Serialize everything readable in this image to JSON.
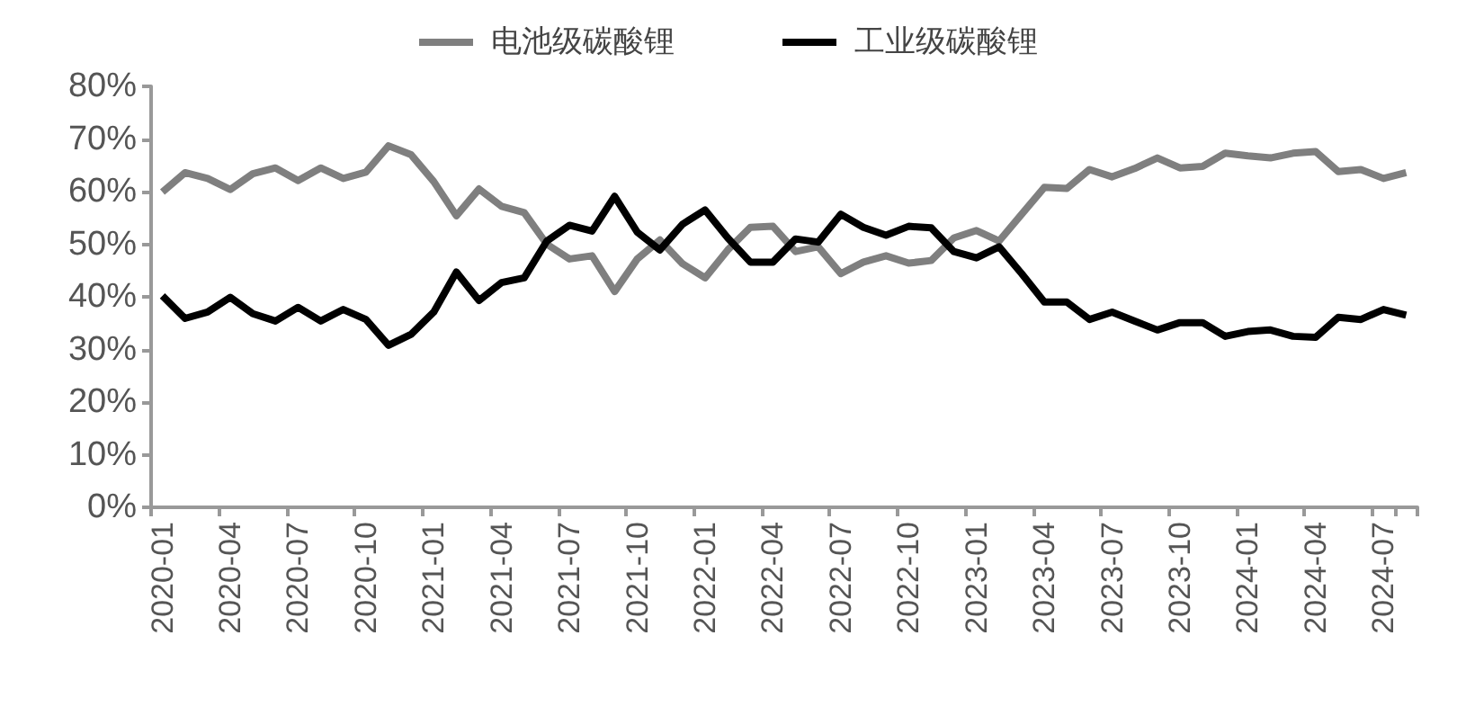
{
  "chart_data": {
    "type": "line",
    "categories": [
      "2020-01",
      null,
      null,
      "2020-04",
      null,
      null,
      "2020-07",
      null,
      null,
      "2020-10",
      null,
      null,
      "2021-01",
      null,
      null,
      "2021-04",
      null,
      null,
      "2021-07",
      null,
      null,
      "2021-10",
      null,
      null,
      "2022-01",
      null,
      null,
      "2022-04",
      null,
      null,
      "2022-07",
      null,
      null,
      "2022-10",
      null,
      null,
      "2023-01",
      null,
      null,
      "2023-04",
      null,
      null,
      "2023-07",
      null,
      null,
      "2023-10",
      null,
      null,
      "2024-01",
      null,
      null,
      "2024-04",
      null,
      null,
      "2024-07",
      null
    ],
    "series": [
      {
        "name": "电池级碳酸锂",
        "color": "#7f7f7f",
        "values": [
          59.9,
          63.6,
          62.5,
          60.4,
          63.4,
          64.5,
          62.1,
          64.5,
          62.5,
          63.7,
          68.7,
          67.0,
          61.9,
          55.4,
          60.5,
          57.2,
          56.0,
          50.0,
          47.2,
          47.8,
          41.0,
          47.2,
          50.8,
          46.3,
          43.6,
          48.9,
          53.2,
          53.4,
          48.6,
          49.5,
          44.4,
          46.6,
          47.8,
          46.4,
          46.9,
          51.2,
          52.6,
          50.6,
          55.7,
          60.8,
          60.6,
          64.2,
          62.8,
          64.4,
          66.4,
          64.5,
          64.8,
          67.3,
          66.8,
          66.4,
          67.3,
          67.6,
          63.8,
          64.2,
          62.5,
          63.6
        ]
      },
      {
        "name": "工业级碳酸锂",
        "color": "#000000",
        "values": [
          40.2,
          35.9,
          37.1,
          39.9,
          36.8,
          35.4,
          38.0,
          35.4,
          37.6,
          35.7,
          30.8,
          32.9,
          37.1,
          44.7,
          39.3,
          42.7,
          43.6,
          50.6,
          53.6,
          52.5,
          59.1,
          52.3,
          48.9,
          53.8,
          56.5,
          51.2,
          46.6,
          46.6,
          51.0,
          50.4,
          55.7,
          53.2,
          51.7,
          53.4,
          53.1,
          48.6,
          47.4,
          49.5,
          44.4,
          39.0,
          39.0,
          35.7,
          37.1,
          35.4,
          33.7,
          35.1,
          35.1,
          32.5,
          33.4,
          33.7,
          32.5,
          32.3,
          36.1,
          35.7,
          37.6,
          36.5
        ]
      }
    ],
    "ylim": [
      0,
      80
    ],
    "yticks": [
      {
        "value": 0,
        "label": "0%"
      },
      {
        "value": 10,
        "label": "10%"
      },
      {
        "value": 20,
        "label": "20%"
      },
      {
        "value": 30,
        "label": "30%"
      },
      {
        "value": 40,
        "label": "40%"
      },
      {
        "value": 50,
        "label": "50%"
      },
      {
        "value": 60,
        "label": "60%"
      },
      {
        "value": 70,
        "label": "70%"
      },
      {
        "value": 80,
        "label": "80%"
      }
    ],
    "legend": "top",
    "grid": false,
    "marker": "none",
    "line_style": "solid"
  }
}
